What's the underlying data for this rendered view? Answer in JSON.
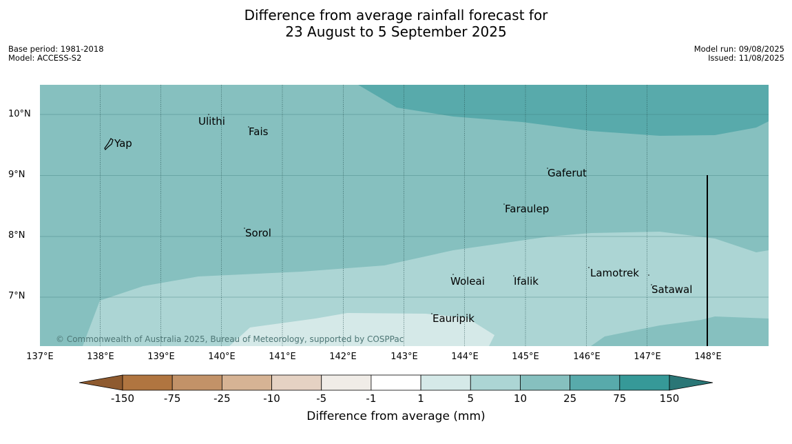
{
  "title_line1": "Difference from average rainfall forecast for",
  "title_line2": "23 August to 5 September 2025",
  "base_period": "Base period: 1981-2018",
  "model": "Model: ACCESS-S2",
  "model_run": "Model run: 09/08/2025",
  "issued": "Issued: 11/08/2025",
  "latitudes": [
    "10°N",
    "9°N",
    "8°N",
    "7°N"
  ],
  "longitudes": [
    "137°E",
    "138°E",
    "139°E",
    "140°E",
    "141°E",
    "142°E",
    "143°E",
    "144°E",
    "145°E",
    "146°E",
    "147°E",
    "148°E"
  ],
  "places": [
    "Yap",
    "Ulithi",
    "Fais",
    "Gaferut",
    "Faraulep",
    "Sorol",
    "Woleai",
    "Ifalik",
    "Lamotrek",
    "Satawal",
    "Eauripik"
  ],
  "copyright": "© Commonwealth of Australia 2025, Bureau of Meteorology, supported by COSPPac",
  "colorbar": {
    "ticks": [
      "-150",
      "-75",
      "-25",
      "-10",
      "-5",
      "-1",
      "1",
      "5",
      "10",
      "25",
      "75",
      "150"
    ],
    "colors": [
      "#8e5a2f",
      "#b07540",
      "#c29268",
      "#d6b394",
      "#e5d2c3",
      "#f0ece7",
      "#ffffff",
      "#d5e9e8",
      "#acd5d4",
      "#86c0bf",
      "#58aaab",
      "#369998",
      "#2a7676"
    ],
    "label": "Difference from average (mm)"
  }
}
